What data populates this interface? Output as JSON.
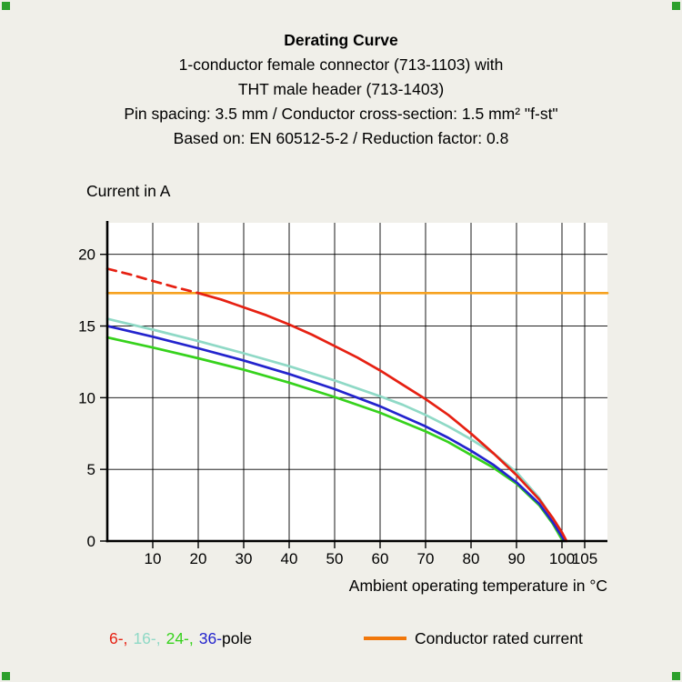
{
  "corner_marker_color": "#2ca02c",
  "header": {
    "title": "Derating Curve",
    "subtitle_lines": [
      "1-conductor female connector (713-1103) with",
      "THT male header (713-1403)",
      "Pin spacing: 3.5 mm / Conductor cross-section: 1.5 mm² \"f-st\"",
      "Based on: EN 60512-5-2 / Reduction factor: 0.8"
    ]
  },
  "chart_data": {
    "type": "line",
    "title": "Derating Curve",
    "ylabel": "Current in A",
    "xlabel": "Ambient operating temperature in °C",
    "xlim": [
      0,
      110
    ],
    "ylim": [
      0,
      22.2
    ],
    "xticks": [
      10,
      20,
      30,
      40,
      50,
      60,
      70,
      80,
      90,
      100,
      105
    ],
    "yticks": [
      0,
      5,
      10,
      15,
      20
    ],
    "grid": true,
    "plot_bg": "#ffffff",
    "series": [
      {
        "name": "Conductor rated current",
        "color": "#f6a11f",
        "style": "solid",
        "width": 2.7,
        "points": [
          [
            0,
            17.3
          ],
          [
            110,
            17.3
          ]
        ]
      },
      {
        "name": "16-pole",
        "color": "#8fd9c6",
        "style": "solid",
        "width": 2.7,
        "points": [
          [
            0,
            15.5
          ],
          [
            10,
            14.75
          ],
          [
            20,
            13.95
          ],
          [
            30,
            13.1
          ],
          [
            40,
            12.2
          ],
          [
            50,
            11.2
          ],
          [
            60,
            10.1
          ],
          [
            65,
            9.5
          ],
          [
            70,
            8.8
          ],
          [
            75,
            8.0
          ],
          [
            80,
            7.1
          ],
          [
            85,
            6.1
          ],
          [
            90,
            4.8
          ],
          [
            95,
            3.0
          ],
          [
            98,
            1.5
          ],
          [
            100,
            0.3
          ],
          [
            100.5,
            0
          ]
        ]
      },
      {
        "name": "24-pole",
        "color": "#36d21c",
        "style": "solid",
        "width": 2.7,
        "points": [
          [
            0,
            14.2
          ],
          [
            10,
            13.5
          ],
          [
            20,
            12.75
          ],
          [
            30,
            11.95
          ],
          [
            40,
            11.05
          ],
          [
            50,
            10.05
          ],
          [
            60,
            8.95
          ],
          [
            70,
            7.65
          ],
          [
            75,
            6.9
          ],
          [
            80,
            6.0
          ],
          [
            85,
            5.1
          ],
          [
            90,
            4.0
          ],
          [
            95,
            2.5
          ],
          [
            98,
            1.2
          ],
          [
            100,
            0.1
          ],
          [
            100.3,
            0
          ]
        ]
      },
      {
        "name": "36-pole",
        "color": "#2323cd",
        "style": "solid",
        "width": 2.7,
        "points": [
          [
            0,
            15.0
          ],
          [
            10,
            14.25
          ],
          [
            20,
            13.45
          ],
          [
            30,
            12.6
          ],
          [
            40,
            11.65
          ],
          [
            50,
            10.6
          ],
          [
            60,
            9.4
          ],
          [
            70,
            8.0
          ],
          [
            75,
            7.2
          ],
          [
            80,
            6.3
          ],
          [
            85,
            5.3
          ],
          [
            90,
            4.1
          ],
          [
            95,
            2.6
          ],
          [
            98,
            1.3
          ],
          [
            100,
            0.3
          ],
          [
            100.6,
            0
          ]
        ]
      },
      {
        "name": "6-pole (below rated current, dashed)",
        "color": "#e62012",
        "style": "dashed",
        "width": 2.7,
        "points": [
          [
            0,
            19.0
          ],
          [
            5,
            18.6
          ],
          [
            10,
            18.15
          ],
          [
            15,
            17.7
          ],
          [
            20,
            17.3
          ]
        ]
      },
      {
        "name": "6-pole",
        "color": "#e62012",
        "style": "solid",
        "width": 2.7,
        "points": [
          [
            20,
            17.3
          ],
          [
            25,
            16.85
          ],
          [
            30,
            16.3
          ],
          [
            35,
            15.75
          ],
          [
            40,
            15.1
          ],
          [
            45,
            14.4
          ],
          [
            50,
            13.6
          ],
          [
            55,
            12.8
          ],
          [
            60,
            11.9
          ],
          [
            65,
            10.9
          ],
          [
            70,
            9.9
          ],
          [
            75,
            8.8
          ],
          [
            80,
            7.5
          ],
          [
            85,
            6.1
          ],
          [
            90,
            4.6
          ],
          [
            95,
            2.9
          ],
          [
            98,
            1.6
          ],
          [
            100,
            0.6
          ],
          [
            101,
            0
          ]
        ]
      }
    ]
  },
  "legend": {
    "pole_tokens": [
      {
        "text": "6-,",
        "color": "#e62012"
      },
      {
        "text": "16-,",
        "color": "#8fd9c6"
      },
      {
        "text": "24-,",
        "color": "#36d21c"
      },
      {
        "text": "36-",
        "color": "#2323cd"
      },
      {
        "text": "pole",
        "color": "#000000"
      }
    ],
    "rated_label": "Conductor rated current",
    "rated_swatch_color": "#f1770b"
  }
}
